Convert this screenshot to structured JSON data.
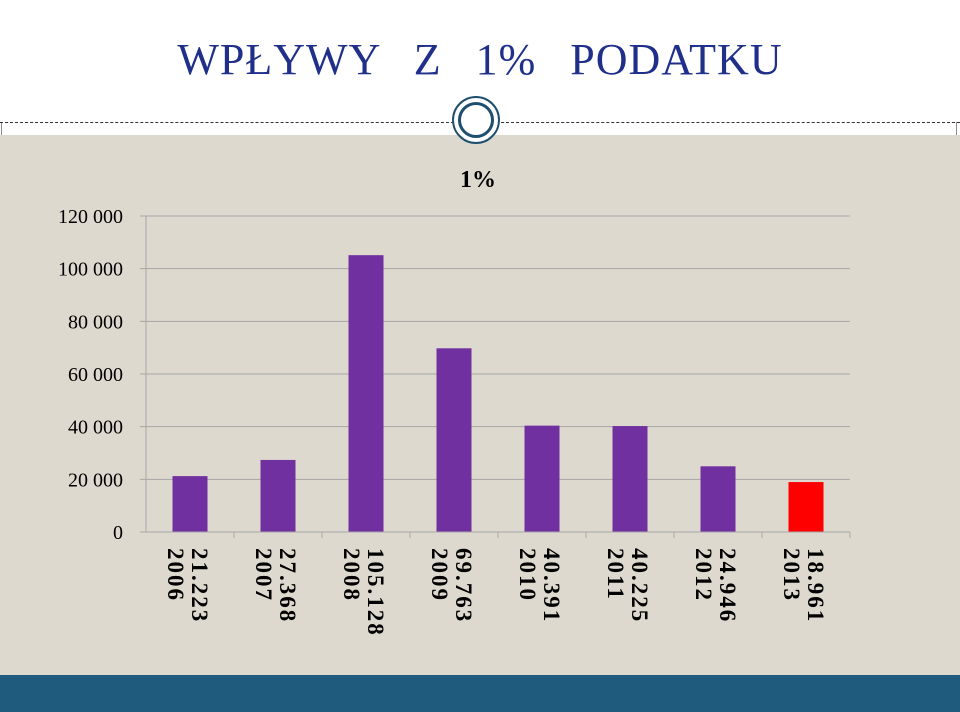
{
  "slide": {
    "title": "WPŁYWY Z 1% PODATKU"
  },
  "colors": {
    "bar_default": "#7030a0",
    "bar_highlight": "#ff0000",
    "background_panel": "#ded9cf",
    "footer": "#1e5b7c",
    "title_text": "#1f2f8a"
  },
  "chart_data": {
    "type": "bar",
    "title": "1%",
    "xlabel": "",
    "ylabel": "",
    "ylim": [
      0,
      120000
    ],
    "yticks": [
      0,
      20000,
      40000,
      60000,
      80000,
      100000,
      120000
    ],
    "ytick_labels": [
      "0",
      "20 000",
      "40 000",
      "60 000",
      "80 000",
      "100 000",
      "120 000"
    ],
    "categories": [
      "2006",
      "2007",
      "2008",
      "2009",
      "2010",
      "2011",
      "2012",
      "2013"
    ],
    "value_labels": [
      "21.223",
      "27.368",
      "105.128",
      "69.763",
      "40.391",
      "40.225",
      "24.946",
      "18.961"
    ],
    "values": [
      21223,
      27368,
      105128,
      69763,
      40391,
      40225,
      24946,
      18961
    ],
    "highlight_index": 7,
    "grid": true,
    "legend": "none"
  }
}
